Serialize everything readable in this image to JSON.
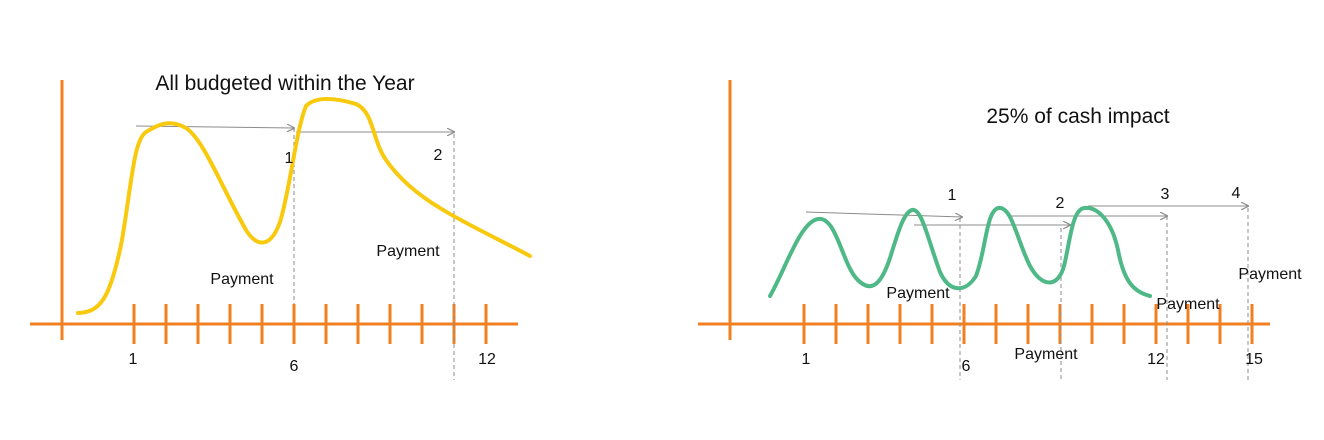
{
  "colors": {
    "axis": "#F28021",
    "curve_left": "#F9C90E",
    "curve_right": "#4FB887",
    "arrow": "#8C8C8C",
    "text": "#111111"
  },
  "left_panel": {
    "title": "All budgeted within the Year",
    "tick_labels": [
      "1",
      "6",
      "12"
    ],
    "marker_numbers": [
      "1",
      "2"
    ],
    "payment_labels": [
      "Payment",
      "Payment"
    ]
  },
  "right_panel": {
    "title": "25% of cash impact",
    "tick_labels": [
      "1",
      "6",
      "12",
      "15"
    ],
    "marker_numbers": [
      "1",
      "2",
      "3",
      "4"
    ],
    "payment_labels": [
      "Payment",
      "Payment",
      "Payment",
      "Payment"
    ]
  }
}
